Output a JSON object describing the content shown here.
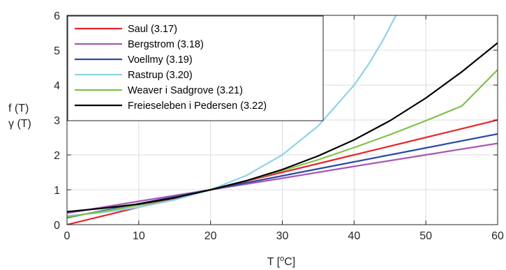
{
  "chart_data": {
    "type": "line",
    "title": "",
    "xlabel": "T [°C]",
    "ylabel_lines": [
      "f (T)",
      "γ (T)"
    ],
    "xlim": [
      0,
      60
    ],
    "ylim": [
      0,
      6
    ],
    "x_ticks": [
      0,
      10,
      20,
      30,
      40,
      50,
      60
    ],
    "y_ticks": [
      0,
      1,
      2,
      3,
      4,
      5,
      6
    ],
    "grid": true,
    "legend_position": "top-left",
    "series": [
      {
        "name": "Saul (3.17)",
        "color": "#e8262b",
        "x": [
          0,
          10,
          20,
          30,
          40,
          50,
          60
        ],
        "y": [
          0,
          0.5,
          1,
          1.5,
          2,
          2.5,
          3
        ]
      },
      {
        "name": "Bergstrom (3.18)",
        "color": "#a857b5",
        "x": [
          0,
          10,
          20,
          30,
          40,
          50,
          60
        ],
        "y": [
          0.33,
          0.67,
          1,
          1.33,
          1.67,
          2,
          2.33
        ]
      },
      {
        "name": "Voellmy (3.19)",
        "color": "#2b4aa5",
        "x": [
          0,
          10,
          20,
          30,
          40,
          50,
          60
        ],
        "y": [
          0.2,
          0.6,
          1,
          1.4,
          1.8,
          2.2,
          2.6
        ]
      },
      {
        "name": "Rastrup (3.20)",
        "color": "#8fd3e6",
        "x": [
          0,
          5,
          10,
          15,
          20,
          25,
          30,
          35,
          40,
          42,
          44,
          46
        ],
        "y": [
          0.25,
          0.35,
          0.5,
          0.71,
          1,
          1.41,
          2,
          2.83,
          4,
          4.59,
          5.28,
          6.06
        ]
      },
      {
        "name": "Weaver i Sadgrove (3.21)",
        "color": "#7ec24a",
        "x": [
          0,
          5,
          10,
          15,
          20,
          25,
          30,
          35,
          40,
          45,
          50,
          55,
          60
        ],
        "y": [
          0.22,
          0.38,
          0.56,
          0.77,
          1,
          1.26,
          1.55,
          1.86,
          2.21,
          2.58,
          2.98,
          3.4,
          4.44
        ]
      },
      {
        "name": "Freieseleben i Pedersen (3.22)",
        "color": "#000000",
        "x": [
          0,
          5,
          10,
          15,
          20,
          25,
          30,
          35,
          40,
          45,
          50,
          55,
          60
        ],
        "y": [
          0.37,
          0.47,
          0.59,
          0.77,
          1,
          1.26,
          1.58,
          1.97,
          2.43,
          2.98,
          3.63,
          4.38,
          5.21
        ]
      }
    ]
  }
}
